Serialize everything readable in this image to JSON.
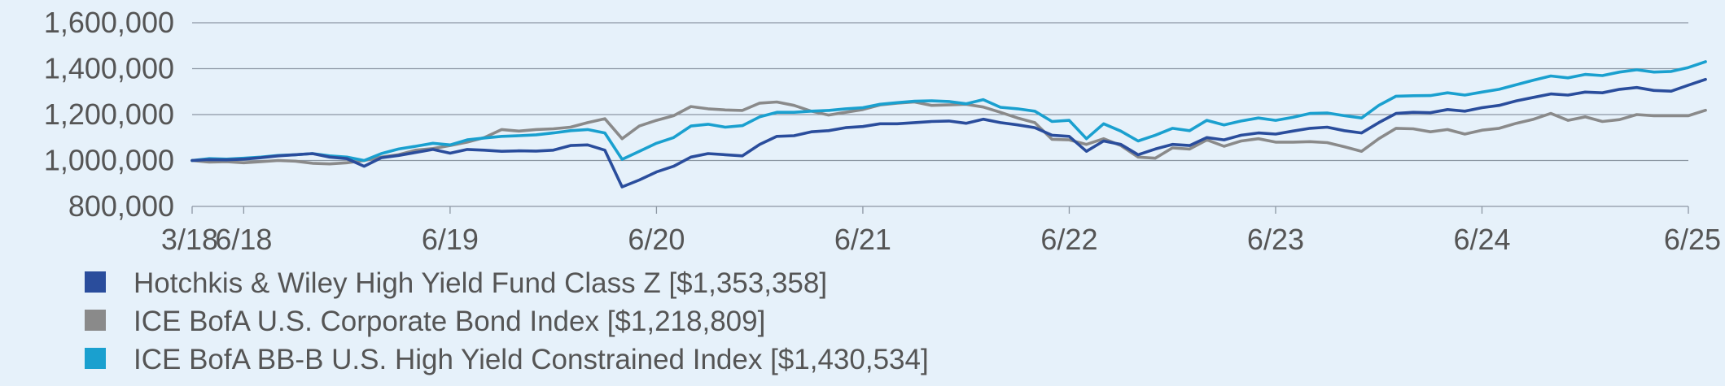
{
  "chart_data": {
    "type": "line",
    "title": "",
    "xlabel": "",
    "ylabel": "",
    "ylim": [
      800000,
      1600000
    ],
    "yticks": [
      800000,
      1000000,
      1200000,
      1400000,
      1600000
    ],
    "ytick_labels": [
      "800,000",
      "1,000,000",
      "1,200,000",
      "1,400,000",
      "1,600,000"
    ],
    "xlim": [
      0,
      87
    ],
    "xticks": [
      0,
      3,
      15,
      27,
      39,
      51,
      63,
      75,
      87
    ],
    "xtick_labels": [
      "3/18",
      "6/18",
      "6/19",
      "6/20",
      "6/21",
      "6/22",
      "6/23",
      "6/24",
      "6/25"
    ],
    "grid": true,
    "legend_position": "bottom-left",
    "series": [
      {
        "name": "Hotchkis & Wiley High Yield Fund Class Z",
        "legend_label": "Hotchkis & Wiley High Yield Fund Class Z [$1,353,358]",
        "color": "#2a4d9c",
        "values": [
          1000000,
          1004000,
          1003000,
          1006000,
          1012000,
          1020000,
          1025000,
          1030000,
          1015000,
          1008000,
          975000,
          1012000,
          1022000,
          1035000,
          1048000,
          1032000,
          1048000,
          1045000,
          1040000,
          1042000,
          1041000,
          1045000,
          1065000,
          1068000,
          1045000,
          885000,
          915000,
          950000,
          975000,
          1015000,
          1030000,
          1025000,
          1020000,
          1070000,
          1105000,
          1108000,
          1125000,
          1130000,
          1143000,
          1148000,
          1160000,
          1160000,
          1165000,
          1170000,
          1172000,
          1162000,
          1180000,
          1165000,
          1155000,
          1143000,
          1110000,
          1105000,
          1040000,
          1085000,
          1070000,
          1025000,
          1050000,
          1070000,
          1065000,
          1100000,
          1090000,
          1110000,
          1120000,
          1115000,
          1128000,
          1140000,
          1145000,
          1130000,
          1120000,
          1165000,
          1205000,
          1210000,
          1208000,
          1222000,
          1215000,
          1230000,
          1240000,
          1260000,
          1275000,
          1290000,
          1285000,
          1298000,
          1295000,
          1310000,
          1318000,
          1305000,
          1302000,
          1328000,
          1353358
        ]
      },
      {
        "name": "ICE BofA U.S. Corporate Bond Index",
        "legend_label": "ICE BofA U.S. Corporate Bond Index [$1,218,809]",
        "color": "#8a8a8a",
        "values": [
          1000000,
          993000,
          995000,
          990000,
          995000,
          1000000,
          997000,
          988000,
          985000,
          990000,
          1000000,
          1015000,
          1025000,
          1045000,
          1052000,
          1065000,
          1080000,
          1100000,
          1135000,
          1128000,
          1135000,
          1138000,
          1145000,
          1165000,
          1182000,
          1095000,
          1150000,
          1175000,
          1195000,
          1235000,
          1225000,
          1220000,
          1218000,
          1250000,
          1255000,
          1240000,
          1215000,
          1198000,
          1210000,
          1222000,
          1242000,
          1250000,
          1255000,
          1240000,
          1242000,
          1245000,
          1233000,
          1210000,
          1185000,
          1165000,
          1092000,
          1090000,
          1070000,
          1095000,
          1065000,
          1015000,
          1010000,
          1055000,
          1050000,
          1090000,
          1062000,
          1085000,
          1095000,
          1080000,
          1080000,
          1082000,
          1078000,
          1060000,
          1040000,
          1095000,
          1140000,
          1138000,
          1125000,
          1135000,
          1115000,
          1132000,
          1140000,
          1162000,
          1180000,
          1205000,
          1175000,
          1190000,
          1170000,
          1178000,
          1200000,
          1195000,
          1195000,
          1195000,
          1218809
        ]
      },
      {
        "name": "ICE BofA BB-B U.S. High Yield Constrained Index",
        "legend_label": "ICE BofA BB-B U.S. High Yield Constrained Index [$1,430,534]",
        "color": "#1aa0cf",
        "values": [
          1000000,
          1008000,
          1006000,
          1010000,
          1015000,
          1022000,
          1025000,
          1030000,
          1020000,
          1015000,
          1000000,
          1030000,
          1050000,
          1062000,
          1075000,
          1068000,
          1090000,
          1098000,
          1105000,
          1108000,
          1112000,
          1120000,
          1130000,
          1135000,
          1120000,
          1005000,
          1040000,
          1075000,
          1100000,
          1150000,
          1158000,
          1145000,
          1152000,
          1190000,
          1210000,
          1210000,
          1215000,
          1218000,
          1225000,
          1230000,
          1245000,
          1252000,
          1258000,
          1260000,
          1257000,
          1247000,
          1265000,
          1232000,
          1225000,
          1215000,
          1170000,
          1175000,
          1095000,
          1160000,
          1128000,
          1085000,
          1110000,
          1140000,
          1130000,
          1175000,
          1155000,
          1172000,
          1185000,
          1175000,
          1188000,
          1205000,
          1207000,
          1195000,
          1185000,
          1240000,
          1280000,
          1282000,
          1283000,
          1295000,
          1285000,
          1298000,
          1310000,
          1330000,
          1350000,
          1368000,
          1360000,
          1375000,
          1370000,
          1385000,
          1395000,
          1385000,
          1388000,
          1405000,
          1430534
        ]
      }
    ]
  }
}
